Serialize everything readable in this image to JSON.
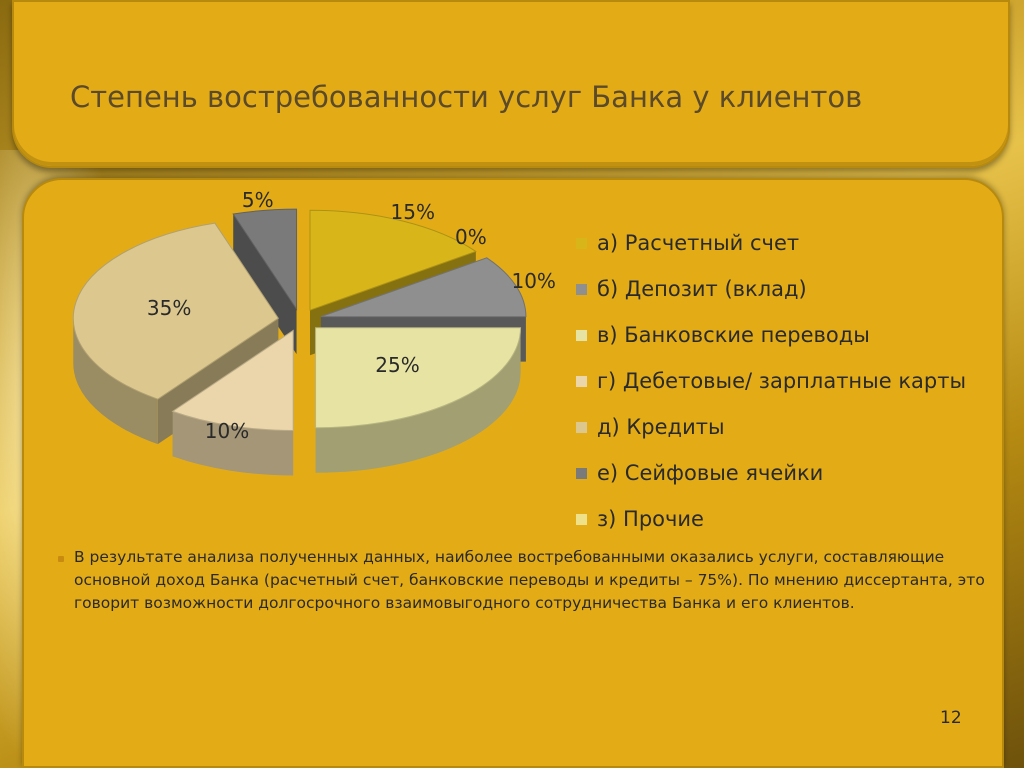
{
  "slide": {
    "title": "Степень востребованности услуг Банка у клиентов",
    "paragraph": "В результате анализа полученных данных, наиболее востребованными оказались услуги, составляющие основной доход Банка (расчетный счет, банковские переводы и кредиты – 75%). По мнению диссертанта, это говорит возможности долгосрочного взаимовыгодного сотрудничества Банка и его клиентов.",
    "page_number": "12"
  },
  "chart_data": {
    "type": "pie",
    "style": "3d-exploded",
    "slices": [
      {
        "label": "а) Расчетный счет",
        "value": 15,
        "value_label": "15%",
        "color": "#d8b61a"
      },
      {
        "label": "б) Депозит (вклад)",
        "value": 10,
        "value_label": "10%",
        "color": "#8f8f8f"
      },
      {
        "label": "в) Банковские переводы",
        "value": 25,
        "value_label": "25%",
        "color": "#e7e3a3"
      },
      {
        "label": "г) Дебетовые/ зарплатные карты",
        "value": 10,
        "value_label": "10%",
        "color": "#ead6aa"
      },
      {
        "label": "д) Кредиты",
        "value": 35,
        "value_label": "35%",
        "color": "#dcc88e"
      },
      {
        "label": "е) Сейфовые ячейки",
        "value": 5,
        "value_label": "5%",
        "color": "#7a7a7a"
      },
      {
        "label": "з) Прочие",
        "value": 0,
        "value_label": "0%",
        "color": "#efe08a"
      }
    ],
    "legend_position": "right"
  }
}
